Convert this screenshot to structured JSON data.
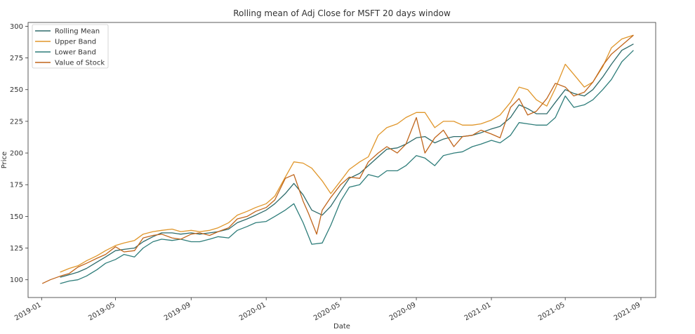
{
  "chart_data": {
    "type": "line",
    "title": "Rolling mean of Adj Close for MSFT 20 days window",
    "xlabel": "Date",
    "ylabel": "Price",
    "xlim": [
      "2018-12-10",
      "2021-09-25"
    ],
    "ylim": [
      86,
      303
    ],
    "x_ticks": [
      "2019-01",
      "2019-05",
      "2019-09",
      "2020-01",
      "2020-05",
      "2020-09",
      "2021-01",
      "2021-05",
      "2021-09"
    ],
    "y_ticks": [
      100,
      125,
      150,
      175,
      200,
      225,
      250,
      275,
      300
    ],
    "grid": false,
    "legend_position": "top-left",
    "colors": {
      "rolling_mean": "#2e6b6b",
      "upper_band": "#e0962a",
      "lower_band": "#2e7d7a",
      "value": "#c0651b"
    },
    "series": [
      {
        "name": "Rolling Mean",
        "key": "rolling_mean",
        "x": [
          "2019-01-31",
          "2019-02-15",
          "2019-03-01",
          "2019-03-15",
          "2019-04-01",
          "2019-04-15",
          "2019-05-01",
          "2019-05-15",
          "2019-06-01",
          "2019-06-15",
          "2019-07-01",
          "2019-07-15",
          "2019-08-01",
          "2019-08-15",
          "2019-09-01",
          "2019-09-15",
          "2019-10-01",
          "2019-10-15",
          "2019-11-01",
          "2019-11-15",
          "2019-12-01",
          "2019-12-15",
          "2020-01-01",
          "2020-01-15",
          "2020-02-01",
          "2020-02-15",
          "2020-03-01",
          "2020-03-15",
          "2020-04-01",
          "2020-04-15",
          "2020-05-01",
          "2020-05-15",
          "2020-06-01",
          "2020-06-15",
          "2020-07-01",
          "2020-07-15",
          "2020-08-01",
          "2020-08-15",
          "2020-09-01",
          "2020-09-15",
          "2020-10-01",
          "2020-10-15",
          "2020-11-01",
          "2020-11-15",
          "2020-12-01",
          "2020-12-15",
          "2021-01-01",
          "2021-01-15",
          "2021-02-01",
          "2021-02-15",
          "2021-03-01",
          "2021-03-15",
          "2021-04-01",
          "2021-04-15",
          "2021-05-01",
          "2021-05-15",
          "2021-06-01",
          "2021-06-15",
          "2021-07-01",
          "2021-07-15",
          "2021-08-01",
          "2021-08-20"
        ],
        "values": [
          102,
          104,
          106,
          109,
          114,
          118,
          123,
          124,
          125,
          130,
          134,
          137,
          137,
          136,
          137,
          136,
          137,
          138,
          140,
          145,
          148,
          151,
          155,
          160,
          168,
          176,
          167,
          155,
          151,
          158,
          170,
          180,
          184,
          190,
          197,
          203,
          204,
          207,
          212,
          213,
          208,
          211,
          213,
          213,
          214,
          216,
          219,
          221,
          228,
          238,
          235,
          231,
          231,
          240,
          250,
          247,
          245,
          250,
          260,
          270,
          281,
          286
        ]
      },
      {
        "name": "Upper Band",
        "key": "upper_band",
        "x": [
          "2019-01-31",
          "2019-02-15",
          "2019-03-01",
          "2019-03-15",
          "2019-04-01",
          "2019-04-15",
          "2019-05-01",
          "2019-05-15",
          "2019-06-01",
          "2019-06-15",
          "2019-07-01",
          "2019-07-15",
          "2019-08-01",
          "2019-08-15",
          "2019-09-01",
          "2019-09-15",
          "2019-10-01",
          "2019-10-15",
          "2019-11-01",
          "2019-11-15",
          "2019-12-01",
          "2019-12-15",
          "2020-01-01",
          "2020-01-15",
          "2020-02-01",
          "2020-02-15",
          "2020-03-01",
          "2020-03-15",
          "2020-04-01",
          "2020-04-15",
          "2020-05-01",
          "2020-05-15",
          "2020-06-01",
          "2020-06-15",
          "2020-07-01",
          "2020-07-15",
          "2020-08-01",
          "2020-08-15",
          "2020-09-01",
          "2020-09-15",
          "2020-10-01",
          "2020-10-15",
          "2020-11-01",
          "2020-11-15",
          "2020-12-01",
          "2020-12-15",
          "2021-01-01",
          "2021-01-15",
          "2021-02-01",
          "2021-02-15",
          "2021-03-01",
          "2021-03-15",
          "2021-04-01",
          "2021-04-15",
          "2021-05-01",
          "2021-05-15",
          "2021-06-01",
          "2021-06-15",
          "2021-07-01",
          "2021-07-15",
          "2021-08-01",
          "2021-08-20"
        ],
        "values": [
          106,
          109,
          111,
          115,
          119,
          123,
          127,
          129,
          131,
          136,
          138,
          139,
          140,
          138,
          139,
          138,
          139,
          141,
          145,
          151,
          154,
          157,
          160,
          166,
          181,
          193,
          192,
          188,
          178,
          168,
          178,
          187,
          193,
          197,
          214,
          220,
          223,
          228,
          232,
          232,
          220,
          225,
          225,
          222,
          222,
          223,
          226,
          230,
          240,
          252,
          250,
          242,
          237,
          251,
          270,
          262,
          252,
          256,
          268,
          283,
          290,
          293
        ]
      },
      {
        "name": "Lower Band",
        "key": "lower_band",
        "x": [
          "2019-01-31",
          "2019-02-15",
          "2019-03-01",
          "2019-03-15",
          "2019-04-01",
          "2019-04-15",
          "2019-05-01",
          "2019-05-15",
          "2019-06-01",
          "2019-06-15",
          "2019-07-01",
          "2019-07-15",
          "2019-08-01",
          "2019-08-15",
          "2019-09-01",
          "2019-09-15",
          "2019-10-01",
          "2019-10-15",
          "2019-11-01",
          "2019-11-15",
          "2019-12-01",
          "2019-12-15",
          "2020-01-01",
          "2020-01-15",
          "2020-02-01",
          "2020-02-15",
          "2020-03-01",
          "2020-03-15",
          "2020-04-01",
          "2020-04-15",
          "2020-05-01",
          "2020-05-15",
          "2020-06-01",
          "2020-06-15",
          "2020-07-01",
          "2020-07-15",
          "2020-08-01",
          "2020-08-15",
          "2020-09-01",
          "2020-09-15",
          "2020-10-01",
          "2020-10-15",
          "2020-11-01",
          "2020-11-15",
          "2020-12-01",
          "2020-12-15",
          "2021-01-01",
          "2021-01-15",
          "2021-02-01",
          "2021-02-15",
          "2021-03-01",
          "2021-03-15",
          "2021-04-01",
          "2021-04-15",
          "2021-05-01",
          "2021-05-15",
          "2021-06-01",
          "2021-06-15",
          "2021-07-01",
          "2021-07-15",
          "2021-08-01",
          "2021-08-20"
        ],
        "values": [
          97,
          99,
          100,
          103,
          108,
          113,
          116,
          120,
          118,
          125,
          130,
          132,
          131,
          132,
          130,
          130,
          132,
          134,
          133,
          139,
          142,
          145,
          146,
          150,
          155,
          160,
          145,
          128,
          129,
          143,
          162,
          173,
          175,
          183,
          181,
          186,
          186,
          190,
          198,
          196,
          190,
          198,
          200,
          201,
          205,
          207,
          210,
          208,
          214,
          224,
          223,
          222,
          222,
          228,
          245,
          236,
          238,
          242,
          250,
          258,
          272,
          281
        ]
      },
      {
        "name": "Value of Stock",
        "key": "value",
        "x": [
          "2019-01-02",
          "2019-01-15",
          "2019-02-01",
          "2019-02-15",
          "2019-03-01",
          "2019-03-15",
          "2019-04-01",
          "2019-04-15",
          "2019-05-01",
          "2019-05-15",
          "2019-06-01",
          "2019-06-15",
          "2019-07-01",
          "2019-07-15",
          "2019-08-01",
          "2019-08-15",
          "2019-09-01",
          "2019-09-15",
          "2019-10-01",
          "2019-10-15",
          "2019-11-01",
          "2019-11-15",
          "2019-12-01",
          "2019-12-15",
          "2020-01-01",
          "2020-01-15",
          "2020-02-01",
          "2020-02-15",
          "2020-03-01",
          "2020-03-10",
          "2020-03-23",
          "2020-04-01",
          "2020-04-15",
          "2020-05-01",
          "2020-05-15",
          "2020-06-01",
          "2020-06-15",
          "2020-07-01",
          "2020-07-15",
          "2020-08-01",
          "2020-08-15",
          "2020-09-01",
          "2020-09-15",
          "2020-10-01",
          "2020-10-15",
          "2020-11-01",
          "2020-11-15",
          "2020-12-01",
          "2020-12-15",
          "2021-01-01",
          "2021-01-15",
          "2021-02-01",
          "2021-02-15",
          "2021-03-01",
          "2021-03-15",
          "2021-04-01",
          "2021-04-15",
          "2021-05-01",
          "2021-05-15",
          "2021-06-01",
          "2021-06-15",
          "2021-07-01",
          "2021-07-15",
          "2021-08-01",
          "2021-08-20"
        ],
        "values": [
          97,
          100,
          103,
          105,
          110,
          113,
          117,
          120,
          126,
          122,
          123,
          133,
          135,
          136,
          133,
          132,
          136,
          137,
          135,
          138,
          141,
          148,
          150,
          154,
          157,
          163,
          180,
          183,
          162,
          152,
          136,
          155,
          165,
          175,
          181,
          180,
          193,
          200,
          205,
          200,
          207,
          228,
          200,
          212,
          218,
          205,
          213,
          214,
          218,
          215,
          212,
          236,
          243,
          230,
          233,
          243,
          255,
          252,
          245,
          248,
          256,
          269,
          278,
          285,
          293
        ]
      }
    ]
  }
}
